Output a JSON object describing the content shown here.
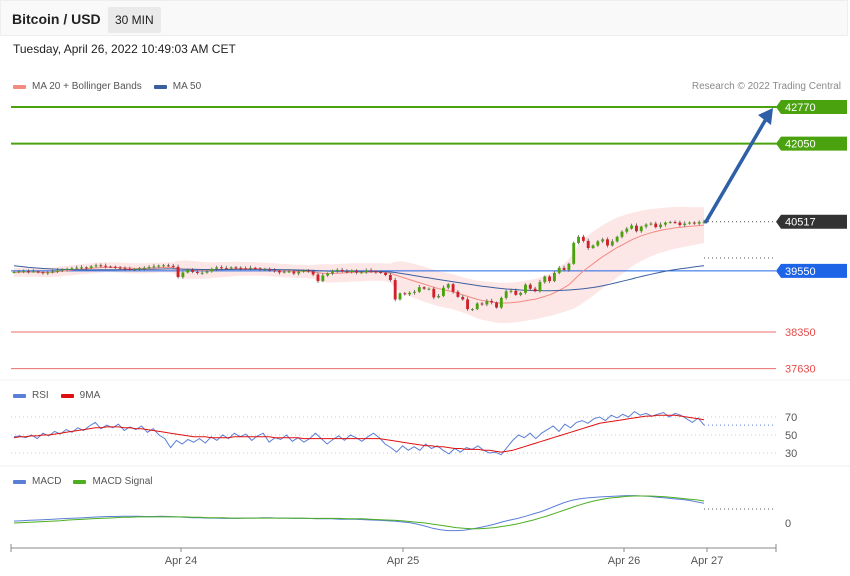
{
  "header": {
    "title": "Bitcoin / USD",
    "interval": "30 MIN"
  },
  "datetime": "Tuesday, April 26, 2022 10:49:03 AM CET",
  "credit": "Research © 2022 Trading Central",
  "legends": {
    "price": [
      {
        "label": "MA 20 + Bollinger Bands",
        "color": "#f28b82"
      },
      {
        "label": "MA 50",
        "color": "#3a5f9e"
      }
    ],
    "rsi": [
      {
        "label": "RSI",
        "color": "#5b7fd6"
      },
      {
        "label": "9MA",
        "color": "#e01010"
      }
    ],
    "macd": [
      {
        "label": "MACD",
        "color": "#5b7fd6"
      },
      {
        "label": "MACD Signal",
        "color": "#4caf20"
      }
    ]
  },
  "colors": {
    "target": "#4aa30e",
    "support": "#e84a4a",
    "pivot": "#1e64e6",
    "current": "#333333",
    "arrow": "#2e5fa7",
    "up": "#4aa30e",
    "down": "#d0202a"
  },
  "chart_data": [
    {
      "type": "candlestick",
      "title": "Bitcoin / USD",
      "x_ticks": [
        "Apr 24",
        "Apr 25",
        "Apr 26",
        "Apr 27"
      ],
      "levels": [
        {
          "value": 42770,
          "label": "42770",
          "kind": "resistance"
        },
        {
          "value": 42050,
          "label": "42050",
          "kind": "resistance"
        },
        {
          "value": 40517,
          "label": "40517",
          "kind": "current"
        },
        {
          "value": 39550,
          "label": "39550",
          "kind": "pivot"
        },
        {
          "value": 38350,
          "label": "38350",
          "kind": "support"
        },
        {
          "value": 37630,
          "label": "37630",
          "kind": "support"
        }
      ],
      "close": [
        39530,
        39540,
        39545,
        39535,
        39540,
        39525,
        39510,
        39520,
        39535,
        39560,
        39580,
        39590,
        39600,
        39615,
        39620,
        39610,
        39640,
        39660,
        39650,
        39635,
        39630,
        39615,
        39600,
        39590,
        39575,
        39580,
        39600,
        39610,
        39625,
        39640,
        39655,
        39660,
        39650,
        39630,
        39430,
        39520,
        39570,
        39530,
        39510,
        39515,
        39540,
        39590,
        39620,
        39605,
        39600,
        39620,
        39610,
        39600,
        39590,
        39610,
        39600,
        39580,
        39580,
        39560,
        39550,
        39520,
        39535,
        39540,
        39500,
        39535,
        39560,
        39540,
        39480,
        39350,
        39460,
        39500,
        39550,
        39570,
        39540,
        39530,
        39560,
        39520,
        39520,
        39560,
        39540,
        39530,
        39510,
        39470,
        39370,
        38990,
        39110,
        39090,
        39120,
        39140,
        39230,
        39200,
        39200,
        39030,
        39060,
        39220,
        39290,
        39140,
        39040,
        38990,
        38800,
        38800,
        38910,
        38890,
        38960,
        38930,
        38830,
        39020,
        39150,
        39160,
        39080,
        39120,
        39280,
        39200,
        39150,
        39330,
        39440,
        39350,
        39510,
        39610,
        39570,
        39690,
        40100,
        40220,
        40140,
        40000,
        40050,
        40130,
        40170,
        40050,
        40130,
        40220,
        40320,
        40380,
        40440,
        40330,
        40420,
        40460,
        40480,
        40410,
        40460,
        40500,
        40510,
        40500,
        40450,
        40480,
        40500,
        40480,
        40510,
        40517
      ],
      "ma20": [
        39520,
        39525,
        39530,
        39525,
        39530,
        39525,
        39520,
        39520,
        39525,
        39535,
        39545,
        39555,
        39565,
        39575,
        39585,
        39590,
        39600,
        39610,
        39615,
        39620,
        39622,
        39620,
        39615,
        39610,
        39605,
        39600,
        39600,
        39600,
        39605,
        39610,
        39615,
        39620,
        39620,
        39615,
        39590,
        39580,
        39575,
        39570,
        39565,
        39560,
        39560,
        39565,
        39570,
        39575,
        39580,
        39585,
        39590,
        39590,
        39590,
        39592,
        39590,
        39585,
        39580,
        39575,
        39570,
        39560,
        39555,
        39550,
        39545,
        39540,
        39540,
        39535,
        39530,
        39515,
        39505,
        39500,
        39500,
        39505,
        39510,
        39515,
        39520,
        39520,
        39522,
        39525,
        39528,
        39530,
        39528,
        39520,
        39505,
        39470,
        39440,
        39410,
        39380,
        39350,
        39320,
        39290,
        39260,
        39230,
        39200,
        39180,
        39160,
        39140,
        39110,
        39080,
        39050,
        39020,
        38990,
        38970,
        38955,
        38940,
        38925,
        38920,
        38920,
        38925,
        38935,
        38945,
        38965,
        38980,
        38995,
        39020,
        39050,
        39080,
        39120,
        39170,
        39220,
        39280,
        39370,
        39460,
        39550,
        39620,
        39690,
        39760,
        39830,
        39890,
        39950,
        40010,
        40060,
        40110,
        40160,
        40200,
        40240,
        40270,
        40300,
        40325,
        40345,
        40365,
        40380,
        40395,
        40405,
        40415,
        40425,
        40432,
        40440,
        40450
      ],
      "ma50": [
        39650,
        39640,
        39630,
        39620,
        39612,
        39605,
        39598,
        39592,
        39588,
        39584,
        39580,
        39578,
        39576,
        39574,
        39572,
        39570,
        39570,
        39570,
        39571,
        39572,
        39573,
        39574,
        39575,
        39576,
        39577,
        39578,
        39579,
        39580,
        39582,
        39584,
        39586,
        39588,
        39589,
        39590,
        39588,
        39586,
        39584,
        39582,
        39580,
        39578,
        39577,
        39576,
        39576,
        39576,
        39577,
        39578,
        39579,
        39580,
        39580,
        39580,
        39580,
        39580,
        39580,
        39580,
        39578,
        39576,
        39574,
        39572,
        39570,
        39568,
        39566,
        39564,
        39560,
        39555,
        39550,
        39547,
        39545,
        39544,
        39543,
        39542,
        39541,
        39540,
        39540,
        39540,
        39540,
        39540,
        39538,
        39534,
        39528,
        39518,
        39505,
        39490,
        39474,
        39458,
        39442,
        39427,
        39412,
        39397,
        39382,
        39367,
        39352,
        39337,
        39322,
        39307,
        39292,
        39278,
        39264,
        39250,
        39238,
        39226,
        39214,
        39204,
        39195,
        39188,
        39182,
        39176,
        39172,
        39168,
        39165,
        39163,
        39162,
        39162,
        39163,
        39166,
        39170,
        39175,
        39182,
        39190,
        39200,
        39212,
        39225,
        39240,
        39258,
        39278,
        39300,
        39322,
        39345,
        39368,
        39392,
        39416,
        39440,
        39462,
        39484,
        39504,
        39524,
        39542,
        39560,
        39576,
        39590,
        39603,
        39616,
        39628,
        39640,
        39655
      ],
      "bb_width": [
        90,
        90,
        92,
        92,
        92,
        92,
        92,
        92,
        92,
        94,
        96,
        98,
        100,
        100,
        100,
        100,
        100,
        100,
        100,
        100,
        100,
        100,
        100,
        100,
        100,
        100,
        100,
        100,
        100,
        100,
        100,
        100,
        100,
        105,
        160,
        175,
        180,
        175,
        170,
        165,
        160,
        155,
        150,
        148,
        145,
        142,
        140,
        138,
        136,
        134,
        132,
        130,
        130,
        130,
        130,
        130,
        130,
        130,
        130,
        130,
        130,
        130,
        135,
        160,
        175,
        180,
        180,
        180,
        180,
        180,
        180,
        180,
        178,
        176,
        174,
        172,
        172,
        175,
        190,
        260,
        300,
        320,
        330,
        335,
        340,
        345,
        345,
        345,
        345,
        345,
        345,
        345,
        345,
        345,
        350,
        360,
        370,
        380,
        385,
        390,
        392,
        394,
        395,
        395,
        395,
        395,
        395,
        395,
        395,
        400,
        405,
        415,
        430,
        455,
        475,
        500,
        560,
        600,
        620,
        630,
        630,
        625,
        620,
        610,
        600,
        590,
        570,
        550,
        530,
        510,
        495,
        480,
        465,
        450,
        440,
        430,
        420,
        410,
        400,
        390,
        380,
        370,
        360,
        350
      ],
      "projection": {
        "from": 40517,
        "to": 42770
      }
    },
    {
      "type": "line",
      "title": "RSI",
      "y_ticks": [
        70,
        50,
        30
      ],
      "series": [
        {
          "name": "RSI",
          "values": [
            48,
            49,
            47,
            50,
            46,
            52,
            49,
            54,
            51,
            56,
            53,
            58,
            55,
            60,
            64,
            57,
            61,
            58,
            62,
            55,
            59,
            56,
            60,
            53,
            57,
            50,
            46,
            36,
            44,
            40,
            45,
            42,
            46,
            41,
            48,
            44,
            50,
            46,
            52,
            48,
            51,
            44,
            49,
            52,
            42,
            47,
            45,
            50,
            43,
            47,
            42,
            46,
            52,
            46,
            40,
            45,
            49,
            44,
            50,
            47,
            43,
            48,
            52,
            47,
            40,
            36,
            31,
            38,
            33,
            37,
            33,
            40,
            35,
            38,
            33,
            29,
            35,
            31,
            36,
            34,
            38,
            33,
            30,
            31,
            28,
            36,
            44,
            50,
            47,
            52,
            46,
            52,
            56,
            60,
            54,
            62,
            58,
            64,
            66,
            63,
            68,
            70,
            66,
            72,
            69,
            73,
            70,
            76,
            72,
            74,
            71,
            73,
            75,
            70,
            74,
            72,
            68,
            64,
            69,
            61
          ]
        },
        {
          "name": "9MA",
          "values": [
            47,
            48,
            48,
            49,
            49,
            50,
            50,
            51,
            52,
            53,
            54,
            55,
            56,
            57,
            58,
            58,
            59,
            59,
            59,
            58,
            58,
            57,
            57,
            56,
            55,
            54,
            53,
            52,
            51,
            50,
            49,
            48,
            48,
            48,
            47,
            47,
            47,
            47,
            48,
            48,
            48,
            48,
            48,
            48,
            48,
            47,
            47,
            47,
            47,
            47,
            46,
            46,
            46,
            46,
            46,
            46,
            46,
            46,
            46,
            46,
            46,
            46,
            46,
            46,
            45,
            44,
            43,
            42,
            41,
            40,
            39,
            38,
            38,
            37,
            37,
            36,
            35,
            35,
            34,
            34,
            34,
            33,
            33,
            32,
            31,
            32,
            33,
            35,
            37,
            39,
            41,
            43,
            45,
            47,
            49,
            51,
            53,
            55,
            57,
            59,
            61,
            63,
            64,
            65,
            66,
            67,
            68,
            69,
            70,
            71,
            71,
            72,
            72,
            72,
            72,
            71,
            70,
            69,
            68,
            67
          ]
        }
      ]
    },
    {
      "type": "line",
      "title": "MACD",
      "y_ticks": [
        0
      ],
      "series": [
        {
          "name": "MACD",
          "values": [
            5,
            6,
            7,
            8,
            9,
            10,
            11,
            12,
            13,
            14,
            15,
            16,
            17,
            17,
            18,
            18,
            18,
            17,
            17,
            18,
            17,
            16,
            15,
            14,
            14,
            13,
            13,
            12,
            12,
            12,
            13,
            13,
            14,
            14,
            13,
            13,
            12,
            12,
            12,
            11,
            11,
            11,
            10,
            10,
            10,
            9,
            8,
            7,
            6,
            5,
            3,
            1,
            -3,
            -8,
            -14,
            -18,
            -20,
            -20,
            -19,
            -16,
            -12,
            -8,
            -3,
            3,
            8,
            12,
            18,
            24,
            30,
            38,
            46,
            54,
            60,
            64,
            66,
            68,
            69,
            70,
            71,
            72,
            72,
            71,
            70,
            68,
            66,
            64,
            62,
            60,
            56,
            52
          ]
        },
        {
          "name": "MACD Signal",
          "values": [
            0,
            1,
            2,
            3,
            4,
            5,
            6,
            8,
            9,
            10,
            11,
            12,
            13,
            14,
            15,
            15,
            16,
            16,
            16,
            16,
            16,
            16,
            16,
            15,
            15,
            14,
            14,
            14,
            13,
            13,
            13,
            13,
            13,
            13,
            13,
            13,
            13,
            13,
            12,
            12,
            12,
            12,
            12,
            11,
            11,
            11,
            10,
            9,
            8,
            7,
            6,
            4,
            2,
            0,
            -3,
            -6,
            -9,
            -12,
            -14,
            -15,
            -15,
            -14,
            -12,
            -9,
            -6,
            -2,
            3,
            8,
            14,
            20,
            27,
            34,
            41,
            48,
            54,
            59,
            63,
            66,
            68,
            70,
            71,
            71,
            71,
            70,
            69,
            67,
            65,
            63,
            61,
            58
          ]
        }
      ]
    }
  ]
}
